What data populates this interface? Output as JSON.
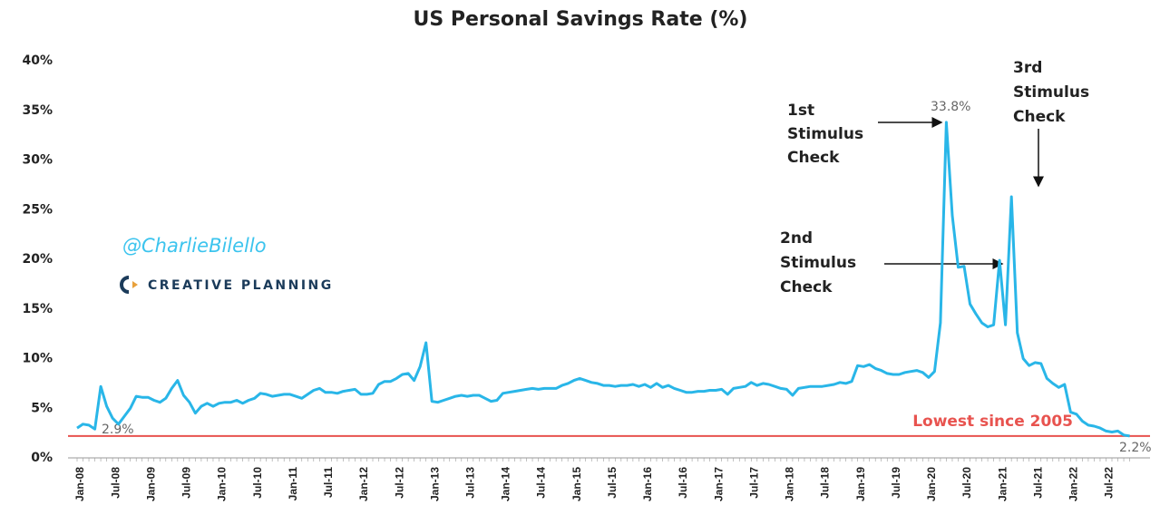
{
  "chart_data": {
    "type": "line",
    "title": "US Personal Savings Rate (%)",
    "categories": [
      "Jan-08",
      null,
      null,
      null,
      null,
      null,
      "Jul-08",
      null,
      null,
      null,
      null,
      null,
      "Jan-09",
      null,
      null,
      null,
      null,
      null,
      "Jul-09",
      null,
      null,
      null,
      null,
      null,
      "Jan-10",
      null,
      null,
      null,
      null,
      null,
      "Jul-10",
      null,
      null,
      null,
      null,
      null,
      "Jan-11",
      null,
      null,
      null,
      null,
      null,
      "Jul-11",
      null,
      null,
      null,
      null,
      null,
      "Jan-12",
      null,
      null,
      null,
      null,
      null,
      "Jul-12",
      null,
      null,
      null,
      null,
      null,
      "Jan-13",
      null,
      null,
      null,
      null,
      null,
      "Jul-13",
      null,
      null,
      null,
      null,
      null,
      "Jan-14",
      null,
      null,
      null,
      null,
      null,
      "Jul-14",
      null,
      null,
      null,
      null,
      null,
      "Jan-15",
      null,
      null,
      null,
      null,
      null,
      "Jul-15",
      null,
      null,
      null,
      null,
      null,
      "Jan-16",
      null,
      null,
      null,
      null,
      null,
      "Jul-16",
      null,
      null,
      null,
      null,
      null,
      "Jan-17",
      null,
      null,
      null,
      null,
      null,
      "Jul-17",
      null,
      null,
      null,
      null,
      null,
      "Jan-18",
      null,
      null,
      null,
      null,
      null,
      "Jul-18",
      null,
      null,
      null,
      null,
      null,
      "Jan-19",
      null,
      null,
      null,
      null,
      null,
      "Jul-19",
      null,
      null,
      null,
      null,
      null,
      "Jan-20",
      null,
      null,
      null,
      null,
      null,
      "Jul-20",
      null,
      null,
      null,
      null,
      null,
      "Jan-21",
      null,
      null,
      null,
      null,
      null,
      "Jul-21",
      null,
      null,
      null,
      null,
      null,
      "Jan-22",
      null,
      null,
      null,
      null,
      null,
      "Jul-22",
      null,
      null,
      null,
      null
    ],
    "series": [
      {
        "name": "US Personal Savings Rate",
        "color": "#29b6e8",
        "values": [
          3.0,
          3.4,
          3.3,
          2.9,
          7.2,
          5.2,
          4.0,
          3.4,
          4.2,
          5.0,
          6.2,
          6.1,
          6.1,
          5.8,
          5.6,
          6.0,
          7.0,
          7.8,
          6.3,
          5.6,
          4.5,
          5.2,
          5.5,
          5.2,
          5.5,
          5.6,
          5.6,
          5.8,
          5.5,
          5.8,
          6.0,
          6.5,
          6.4,
          6.2,
          6.3,
          6.4,
          6.4,
          6.2,
          6.0,
          6.4,
          6.8,
          7.0,
          6.6,
          6.6,
          6.5,
          6.7,
          6.8,
          6.9,
          6.4,
          6.4,
          6.5,
          7.4,
          7.7,
          7.7,
          8.0,
          8.4,
          8.5,
          7.8,
          9.2,
          11.6,
          5.7,
          5.6,
          5.8,
          6.0,
          6.2,
          6.3,
          6.2,
          6.3,
          6.3,
          6.0,
          5.7,
          5.8,
          6.5,
          6.6,
          6.7,
          6.8,
          6.9,
          7.0,
          6.9,
          7.0,
          7.0,
          7.0,
          7.3,
          7.5,
          7.8,
          8.0,
          7.8,
          7.6,
          7.5,
          7.3,
          7.3,
          7.2,
          7.3,
          7.3,
          7.4,
          7.2,
          7.4,
          7.1,
          7.5,
          7.1,
          7.3,
          7.0,
          6.8,
          6.6,
          6.6,
          6.7,
          6.7,
          6.8,
          6.8,
          6.9,
          6.4,
          7.0,
          7.1,
          7.2,
          7.6,
          7.3,
          7.5,
          7.4,
          7.2,
          7.0,
          6.9,
          6.3,
          7.0,
          7.1,
          7.2,
          7.2,
          7.2,
          7.3,
          7.4,
          7.6,
          7.5,
          7.7,
          9.3,
          9.2,
          9.4,
          9.0,
          8.8,
          8.5,
          8.4,
          8.4,
          8.6,
          8.7,
          8.8,
          8.6,
          8.1,
          8.7,
          13.6,
          33.8,
          24.4,
          19.2,
          19.3,
          15.5,
          14.5,
          13.6,
          13.2,
          13.4,
          19.9,
          13.4,
          26.3,
          12.6,
          10.0,
          9.3,
          9.6,
          9.5,
          8.0,
          7.5,
          7.1,
          7.4,
          4.6,
          4.4,
          3.7,
          3.3,
          3.2,
          3.0,
          2.7,
          2.6,
          2.7,
          2.3,
          2.2
        ]
      }
    ],
    "ylim": [
      0,
      40
    ],
    "yticks": [
      {
        "value": 0,
        "label": "0%"
      },
      {
        "value": 5,
        "label": "5%"
      },
      {
        "value": 10,
        "label": "10%"
      },
      {
        "value": 15,
        "label": "15%"
      },
      {
        "value": 20,
        "label": "20%"
      },
      {
        "value": 25,
        "label": "25%"
      },
      {
        "value": 30,
        "label": "30%"
      },
      {
        "value": 35,
        "label": "35%"
      },
      {
        "value": 40,
        "label": "40%"
      }
    ],
    "reference_line": {
      "value": 2.2,
      "color": "#e8534f",
      "label": "Lowest since 2005"
    },
    "point_labels": [
      "33.8%",
      "2.9%",
      "2.2%"
    ],
    "annotations": [
      "1st",
      "Stimulus",
      "Check",
      "2nd",
      "Stimulus",
      "Check",
      "3rd",
      "Stimulus",
      "Check"
    ],
    "watermark": "@CharlieBilello",
    "logo": "CREATIVE PLANNING"
  }
}
